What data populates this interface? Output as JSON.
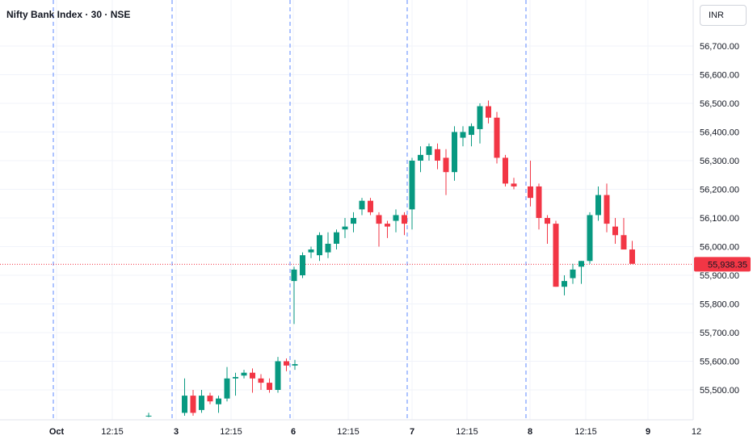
{
  "header": {
    "title": "Nifty Bank Index · 30 · NSE",
    "currency": "INR"
  },
  "colors": {
    "up": "#089981",
    "down": "#f23645",
    "grid": "#f0f3fa",
    "session_line": "#2962ff",
    "price_line": "#f23645",
    "text": "#131722"
  },
  "chart_data": {
    "type": "candlestick",
    "title": "Nifty Bank Index · 30 · NSE",
    "currency": "INR",
    "y_ticks": [
      55500,
      55600,
      55700,
      55800,
      55900,
      56000,
      56100,
      56200,
      56300,
      56400,
      56500,
      56600,
      56700
    ],
    "y_tick_labels": [
      "55,500.00",
      "55,600.00",
      "55,700.00",
      "55,800.00",
      "55,900.00",
      "56,000.00",
      "56,100.00",
      "56,200.00",
      "56,300.00",
      "56,400.00",
      "56,500.00",
      "56,600.00",
      "56,700.00"
    ],
    "x_tick_labels": [
      "Oct",
      "12:15",
      "3",
      "12:15",
      "6",
      "12:15",
      "7",
      "12:15",
      "8",
      "12:15",
      "9",
      "12"
    ],
    "last_price": 55938.35,
    "last_price_label": "55,938.35",
    "sessions": [
      {
        "label": "Oct 1",
        "candles": [
          {
            "o": 55410,
            "h": 55420,
            "l": 55405,
            "c": 55410
          }
        ]
      },
      {
        "label": "Oct 3",
        "candles": [
          {
            "o": 55420,
            "h": 55540,
            "l": 55410,
            "c": 55480
          },
          {
            "o": 55480,
            "h": 55500,
            "l": 55410,
            "c": 55420
          },
          {
            "o": 55430,
            "h": 55500,
            "l": 55420,
            "c": 55480
          },
          {
            "o": 55480,
            "h": 55490,
            "l": 55450,
            "c": 55460
          },
          {
            "o": 55450,
            "h": 55480,
            "l": 55420,
            "c": 55470
          },
          {
            "o": 55470,
            "h": 55580,
            "l": 55460,
            "c": 55540
          },
          {
            "o": 55540,
            "h": 55560,
            "l": 55480,
            "c": 55545
          },
          {
            "o": 55550,
            "h": 55570,
            "l": 55540,
            "c": 55560
          },
          {
            "o": 55560,
            "h": 55575,
            "l": 55490,
            "c": 55540
          },
          {
            "o": 55540,
            "h": 55555,
            "l": 55500,
            "c": 55525
          },
          {
            "o": 55525,
            "h": 55540,
            "l": 55490,
            "c": 55500
          },
          {
            "o": 55500,
            "h": 55615,
            "l": 55490,
            "c": 55600
          },
          {
            "o": 55600,
            "h": 55610,
            "l": 55565,
            "c": 55585
          },
          {
            "o": 55585,
            "h": 55605,
            "l": 55570,
            "c": 55590
          }
        ]
      },
      {
        "label": "Oct 6",
        "candles": [
          {
            "o": 55880,
            "h": 55930,
            "l": 55730,
            "c": 55920
          },
          {
            "o": 55900,
            "h": 55980,
            "l": 55890,
            "c": 55970
          },
          {
            "o": 55980,
            "h": 56000,
            "l": 55960,
            "c": 55990
          },
          {
            "o": 55970,
            "h": 56050,
            "l": 55950,
            "c": 56040
          },
          {
            "o": 55980,
            "h": 56050,
            "l": 55960,
            "c": 56010
          },
          {
            "o": 56010,
            "h": 56060,
            "l": 55990,
            "c": 56050
          },
          {
            "o": 56060,
            "h": 56100,
            "l": 56030,
            "c": 56070
          },
          {
            "o": 56080,
            "h": 56120,
            "l": 56050,
            "c": 56100
          },
          {
            "o": 56130,
            "h": 56170,
            "l": 56110,
            "c": 56160
          },
          {
            "o": 56160,
            "h": 56170,
            "l": 56110,
            "c": 56120
          },
          {
            "o": 56110,
            "h": 56120,
            "l": 56000,
            "c": 56080
          },
          {
            "o": 56080,
            "h": 56090,
            "l": 56030,
            "c": 56070
          },
          {
            "o": 56090,
            "h": 56130,
            "l": 56050,
            "c": 56110
          },
          {
            "o": 56110,
            "h": 56120,
            "l": 56040,
            "c": 56080
          }
        ]
      },
      {
        "label": "Oct 7",
        "candles": [
          {
            "o": 56130,
            "h": 56310,
            "l": 56060,
            "c": 56300
          },
          {
            "o": 56300,
            "h": 56350,
            "l": 56260,
            "c": 56320
          },
          {
            "o": 56320,
            "h": 56360,
            "l": 56300,
            "c": 56350
          },
          {
            "o": 56340,
            "h": 56360,
            "l": 56270,
            "c": 56300
          },
          {
            "o": 56310,
            "h": 56340,
            "l": 56180,
            "c": 56260
          },
          {
            "o": 56260,
            "h": 56420,
            "l": 56230,
            "c": 56400
          },
          {
            "o": 56380,
            "h": 56420,
            "l": 56350,
            "c": 56400
          },
          {
            "o": 56390,
            "h": 56430,
            "l": 56350,
            "c": 56420
          },
          {
            "o": 56410,
            "h": 56500,
            "l": 56360,
            "c": 56490
          },
          {
            "o": 56490,
            "h": 56510,
            "l": 56430,
            "c": 56450
          },
          {
            "o": 56450,
            "h": 56470,
            "l": 56290,
            "c": 56310
          },
          {
            "o": 56310,
            "h": 56320,
            "l": 56210,
            "c": 56220
          },
          {
            "o": 56220,
            "h": 56240,
            "l": 56200,
            "c": 56210
          }
        ]
      },
      {
        "label": "Oct 8",
        "candles": [
          {
            "o": 56210,
            "h": 56300,
            "l": 56140,
            "c": 56170
          },
          {
            "o": 56210,
            "h": 56220,
            "l": 56060,
            "c": 56100
          },
          {
            "o": 56100,
            "h": 56110,
            "l": 56010,
            "c": 56080
          },
          {
            "o": 56080,
            "h": 56090,
            "l": 55860,
            "c": 55860
          },
          {
            "o": 55860,
            "h": 55900,
            "l": 55830,
            "c": 55880
          },
          {
            "o": 55890,
            "h": 55940,
            "l": 55870,
            "c": 55920
          },
          {
            "o": 55930,
            "h": 55950,
            "l": 55870,
            "c": 55950
          },
          {
            "o": 55950,
            "h": 56120,
            "l": 55940,
            "c": 56110
          },
          {
            "o": 56110,
            "h": 56210,
            "l": 56090,
            "c": 56180
          },
          {
            "o": 56180,
            "h": 56220,
            "l": 56050,
            "c": 56080
          },
          {
            "o": 56070,
            "h": 56100,
            "l": 56010,
            "c": 56040
          },
          {
            "o": 56040,
            "h": 56100,
            "l": 55990,
            "c": 55990
          },
          {
            "o": 55990,
            "h": 56020,
            "l": 55940,
            "c": 55940
          }
        ]
      }
    ]
  }
}
